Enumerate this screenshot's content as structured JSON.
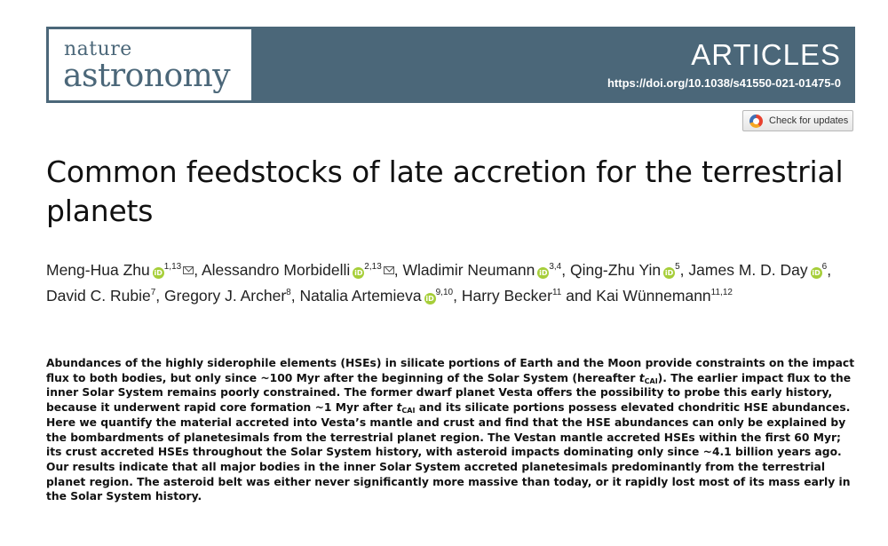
{
  "journal": {
    "name_line1": "nature",
    "name_line2": "astronomy",
    "section": "ARTICLES",
    "doi": "https://doi.org/10.1038/s41550-021-01475-0",
    "header_color": "#4b6779"
  },
  "check_updates": {
    "label": "Check for updates"
  },
  "article": {
    "title": "Common feedstocks of late accretion for the terrestrial planets"
  },
  "authors": [
    {
      "name": "Meng-Hua Zhu",
      "orcid": true,
      "aff": "1,13",
      "email": true,
      "sep": ","
    },
    {
      "name": "Alessandro Morbidelli",
      "orcid": true,
      "aff": "2,13",
      "email": true,
      "sep": ","
    },
    {
      "name": "Wladimir Neumann",
      "orcid": true,
      "aff": "3,4",
      "email": false,
      "sep": ","
    },
    {
      "name": "Qing-Zhu Yin",
      "orcid": true,
      "aff": "5",
      "email": false,
      "sep": ","
    },
    {
      "name": "James M. D. Day",
      "orcid": true,
      "aff": "6",
      "email": false,
      "sep": ","
    },
    {
      "name": "David C. Rubie",
      "orcid": false,
      "aff": "7",
      "email": false,
      "sep": ","
    },
    {
      "name": "Gregory J. Archer",
      "orcid": false,
      "aff": "8",
      "email": false,
      "sep": ","
    },
    {
      "name": "Natalia Artemieva",
      "orcid": true,
      "aff": "9,10",
      "email": false,
      "sep": ","
    },
    {
      "name": "Harry Becker",
      "orcid": false,
      "aff": "11",
      "email": false,
      "sep": " and"
    },
    {
      "name": "Kai Wünnemann",
      "orcid": false,
      "aff": "11,12",
      "email": false,
      "sep": ""
    }
  ],
  "icons": {
    "orcid": "orcid-icon",
    "email": "email-icon",
    "check_updates": "crossmark-icon"
  },
  "abstract": {
    "p1": "Abundances of the highly siderophile elements (HSEs) in silicate portions of Earth and the Moon provide constraints on the impact flux to both bodies, but only since ~100 Myr after the beginning of the Solar System (hereafter ",
    "t_symbol": "t",
    "t_sub": "CAI",
    "p2": "). The earlier impact flux to the inner Solar System remains poorly constrained. The former dwarf planet Vesta offers the possibility to probe this early history, because it underwent rapid core formation ~1 Myr after ",
    "p3": " and its silicate portions possess elevated chondritic HSE abundances. Here we quantify the material accreted into Vesta’s mantle and crust and find that the HSE abundances can only be explained by the bombardments of planetesimals from the terrestrial planet region. The Vestan mantle accreted HSEs within the first 60 Myr; its crust accreted HSEs throughout the Solar System history, with asteroid impacts dominating only since ~4.1 billion years ago. Our results indicate that all major bodies in the inner Solar System accreted planetesimals predomi­nantly from the terrestrial planet region. The asteroid belt was either never significantly more massive than today, or it rapidly lost most of its mass early in the Solar System history."
  }
}
